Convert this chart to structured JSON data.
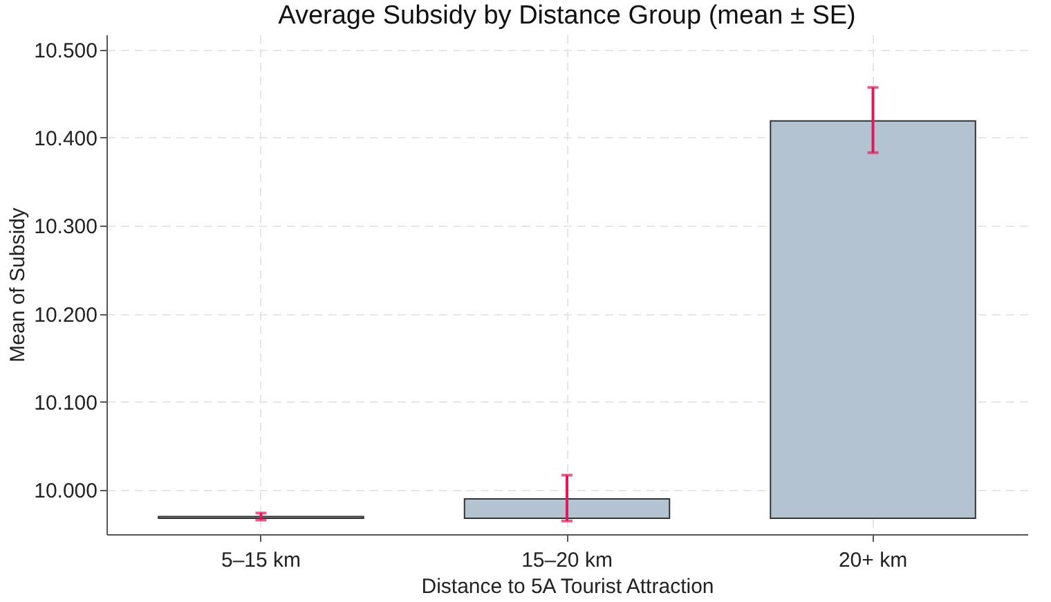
{
  "chart_data": {
    "type": "bar",
    "title": "Average Subsidy by Distance Group (mean ± SE)",
    "xlabel": "Distance to 5A Tourist Attraction",
    "ylabel": "Mean of Subsidy",
    "categories": [
      "5–15 km",
      "15–20 km",
      "20+ km"
    ],
    "series": [
      {
        "color": "#b4c3d1",
        "base": [
          9.968,
          9.968,
          9.968
        ],
        "values": [
          0.002,
          0.022,
          0.451
        ],
        "errors": [
          [
            9.966,
            9.974
          ],
          [
            9.965,
            10.017
          ],
          [
            10.383,
            10.457
          ]
        ]
      }
    ],
    "ylim": [
      9.95,
      10.517
    ],
    "yticks": [
      {
        "value": 10.0,
        "label": "10.000"
      },
      {
        "value": 10.1,
        "label": "10.100"
      },
      {
        "value": 10.2,
        "label": "10.200"
      },
      {
        "value": 10.3,
        "label": "10.300"
      },
      {
        "value": 10.4,
        "label": "10.400"
      },
      {
        "value": 10.5,
        "label": "10.500"
      }
    ],
    "grid": true
  }
}
